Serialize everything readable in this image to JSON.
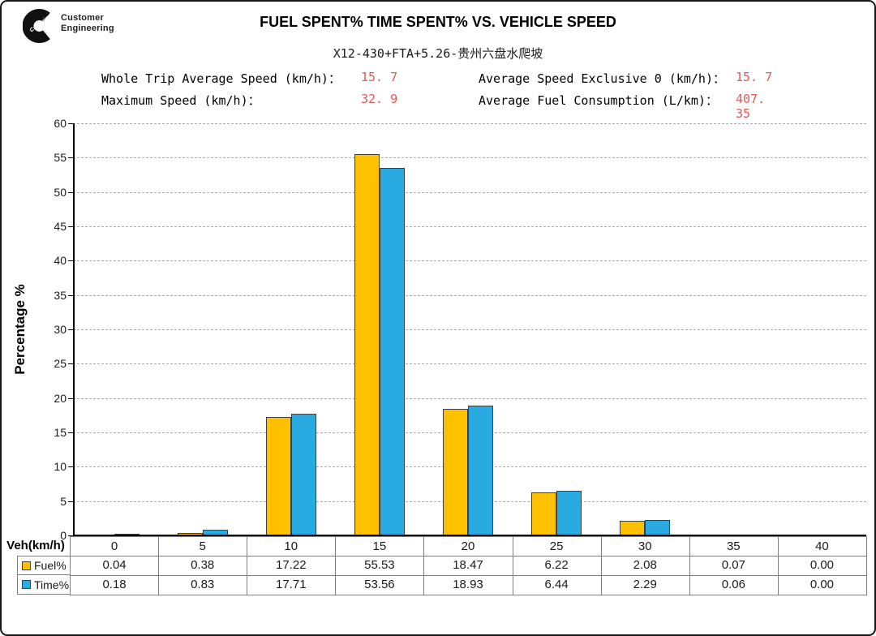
{
  "logo": {
    "brand": "Cummins",
    "line1": "Customer",
    "line2": "Engineering"
  },
  "header": {
    "title": "FUEL SPENT% TIME SPENT% VS. VEHICLE SPEED",
    "subtitle": "X12-430+FTA+5.26-贵州六盘水爬坡"
  },
  "stats": [
    {
      "label": "Whole Trip Average Speed (km/h)：",
      "value": "15. 7"
    },
    {
      "label": "Maximum Speed (km/h)：",
      "value": "32. 9"
    },
    {
      "label": "Average Speed Exclusive 0 (km/h)：",
      "value": "15. 7"
    },
    {
      "label": "Average Fuel Consumption (L/km)：",
      "value": "407. 35"
    }
  ],
  "colors": {
    "fuel": "#FFC000",
    "time": "#29ABE2",
    "bar_border": "#3F3F3F",
    "stat_value": "#E15953",
    "grid": "#A8A8A8",
    "table_border": "#7F7F7F"
  },
  "chart_data": {
    "type": "bar",
    "title": "FUEL SPENT% TIME SPENT% VS. VEHICLE SPEED",
    "subtitle": "X12-430+FTA+5.26-贵州六盘水爬坡",
    "categories": [
      0,
      5,
      10,
      15,
      20,
      25,
      30,
      35,
      40
    ],
    "series": [
      {
        "name": "Fuel%",
        "color": "#FFC000",
        "values": [
          0.04,
          0.38,
          17.22,
          55.53,
          18.47,
          6.22,
          2.08,
          0.07,
          0.0
        ]
      },
      {
        "name": "Time%",
        "color": "#29ABE2",
        "values": [
          0.18,
          0.83,
          17.71,
          53.56,
          18.93,
          6.44,
          2.29,
          0.06,
          0.0
        ]
      }
    ],
    "xlabel": "Veh(km/h)",
    "ylabel": "Percentage %",
    "ylim": [
      0,
      60
    ],
    "ystep": 5,
    "grid": "horizontal-dashed",
    "legend_position": "table-left"
  },
  "table": {
    "row_header": "Veh(km/h)",
    "columns": [
      "0",
      "5",
      "10",
      "15",
      "20",
      "25",
      "30",
      "35",
      "40"
    ],
    "rows": [
      {
        "label": "Fuel%",
        "values": [
          "0.04",
          "0.38",
          "17.22",
          "55.53",
          "18.47",
          "6.22",
          "2.08",
          "0.07",
          "0.00"
        ]
      },
      {
        "label": "Time%",
        "values": [
          "0.18",
          "0.83",
          "17.71",
          "53.56",
          "18.93",
          "6.44",
          "2.29",
          "0.06",
          "0.00"
        ]
      }
    ]
  }
}
